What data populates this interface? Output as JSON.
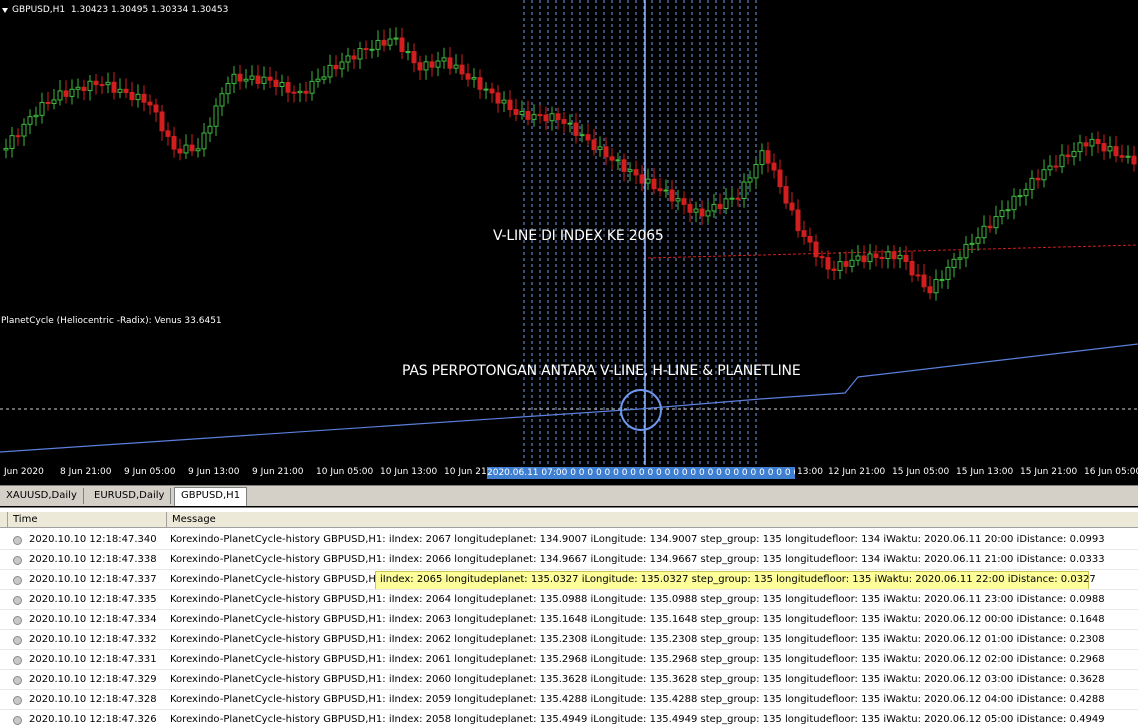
{
  "main_chart": {
    "title": "GBPUSD,H1  1.30423 1.30495 1.30334 1.30453",
    "annotation": "V-LINE DI INDEX KE 2065",
    "colors": {
      "bull": "#3fb83f",
      "bear": "#d11f1f",
      "vline": "#6e9bea",
      "hline": "#d11f1f"
    }
  },
  "sub_chart": {
    "title": "PlanetCycle (Heliocentric -Radix): Venus 33.6451",
    "annotation": "PAS PERPOTONGAN ANTARA V-LINE, H-LINE & PLANETLINE"
  },
  "time_axis": {
    "ticks": [
      "Jun 2020",
      "8 Jun 21:00",
      "9 Jun 05:00",
      "9 Jun 13:00",
      "9 Jun 21:00",
      "10 Jun 05:00",
      "10 Jun 13:00",
      "10 Jun 21:00",
      "12 Jun 21:00",
      "15 Jun 05:00",
      "15 Jun 13:00",
      "15 Jun 21:00",
      "16 Jun 05:00"
    ],
    "tick_partial": "13:00",
    "date_box": "2020.06.11 07:00 0 0 0 0 0 0 0 0 0 0 0 0 0 0 0 0 0 0 0 0 0 0 0 0 0 0 0 0 0 0 0 0 0 0 0 0 0 0 0 0 0 0"
  },
  "tabs": [
    "XAUUSD,Daily",
    "EURUSD,Daily",
    "GBPUSD,H1"
  ],
  "journal": {
    "columns": [
      "Time",
      "Message"
    ],
    "rows": [
      {
        "time": "2020.10.10 12:18:47.340",
        "msg": "Korexindo-PlanetCycle-history GBPUSD,H1: iIndex: 2067 longitudeplanet: 134.9007 iLongitude: 134.9007 step_group: 135 longitudefloor: 134 iWaktu: 2020.06.11 20:00 iDistance: 0.0993"
      },
      {
        "time": "2020.10.10 12:18:47.338",
        "msg": "Korexindo-PlanetCycle-history GBPUSD,H1: iIndex: 2066 longitudeplanet: 134.9667 iLongitude: 134.9667 step_group: 135 longitudefloor: 134 iWaktu: 2020.06.11 21:00 iDistance: 0.0333"
      },
      {
        "time": "2020.10.10 12:18:47.337",
        "msg": "Korexindo-PlanetCycle-history GBPUSD,H1:",
        "msg_highlight": "iIndex: 2065 longitudeplanet: 135.0327 iLongitude: 135.0327 step_group: 135 longitudefloor: 135 iWaktu: 2020.06.11 22:00 iDistance: 0.0327"
      },
      {
        "time": "2020.10.10 12:18:47.335",
        "msg": "Korexindo-PlanetCycle-history GBPUSD,H1: iIndex: 2064 longitudeplanet: 135.0988 iLongitude: 135.0988 step_group: 135 longitudefloor: 135 iWaktu: 2020.06.11 23:00 iDistance: 0.0988"
      },
      {
        "time": "2020.10.10 12:18:47.334",
        "msg": "Korexindo-PlanetCycle-history GBPUSD,H1: iIndex: 2063 longitudeplanet: 135.1648 iLongitude: 135.1648 step_group: 135 longitudefloor: 135 iWaktu: 2020.06.12 00:00 iDistance: 0.1648"
      },
      {
        "time": "2020.10.10 12:18:47.332",
        "msg": "Korexindo-PlanetCycle-history GBPUSD,H1: iIndex: 2062 longitudeplanet: 135.2308 iLongitude: 135.2308 step_group: 135 longitudefloor: 135 iWaktu: 2020.06.12 01:00 iDistance: 0.2308"
      },
      {
        "time": "2020.10.10 12:18:47.331",
        "msg": "Korexindo-PlanetCycle-history GBPUSD,H1: iIndex: 2061 longitudeplanet: 135.2968 iLongitude: 135.2968 step_group: 135 longitudefloor: 135 iWaktu: 2020.06.12 02:00 iDistance: 0.2968"
      },
      {
        "time": "2020.10.10 12:18:47.329",
        "msg": "Korexindo-PlanetCycle-history GBPUSD,H1: iIndex: 2060 longitudeplanet: 135.3628 iLongitude: 135.3628 step_group: 135 longitudefloor: 135 iWaktu: 2020.06.12 03:00 iDistance: 0.3628"
      },
      {
        "time": "2020.10.10 12:18:47.328",
        "msg": "Korexindo-PlanetCycle-history GBPUSD,H1: iIndex: 2059 longitudeplanet: 135.4288 iLongitude: 135.4288 step_group: 135 longitudefloor: 135 iWaktu: 2020.06.12 04:00 iDistance: 0.4288"
      },
      {
        "time": "2020.10.10 12:18:47.326",
        "msg": "Korexindo-PlanetCycle-history GBPUSD,H1: iIndex: 2058 longitudeplanet: 135.4949 iLongitude: 135.4949 step_group: 135 longitudefloor: 135 iWaktu: 2020.06.12 05:00 iDistance: 0.4949"
      }
    ]
  }
}
